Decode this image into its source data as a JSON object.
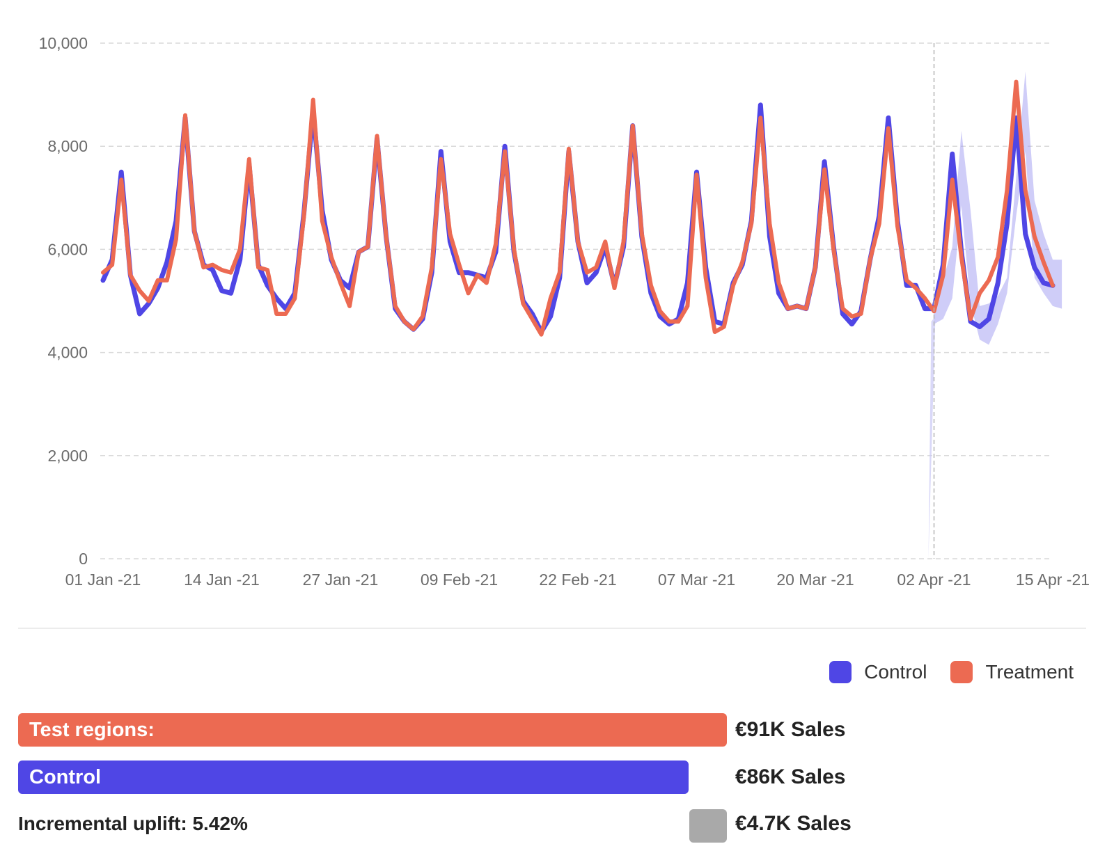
{
  "chart_data": {
    "type": "line",
    "x_start": "2021-01-01",
    "x_ticks": [
      "01 Jan -21",
      "14 Jan -21",
      "27 Jan -21",
      "09 Feb -21",
      "22 Feb -21",
      "07 Mar -21",
      "20 Mar -21",
      "02 Apr -21",
      "15 Apr -21"
    ],
    "y_ticks": [
      "0",
      "2,000",
      "4,000",
      "6,000",
      "8,000",
      "10,000"
    ],
    "ylim": [
      0,
      10000
    ],
    "grid": "horizontal dashed",
    "intervention_date": "02 Apr -21",
    "series": [
      {
        "name": "Control",
        "color": "#4f46e5",
        "values": [
          5400,
          5800,
          7500,
          5500,
          4750,
          4950,
          5250,
          5750,
          6550,
          8550,
          6350,
          5700,
          5600,
          5200,
          5150,
          5800,
          7650,
          5700,
          5300,
          5050,
          4850,
          5150,
          6700,
          8700,
          6750,
          5800,
          5400,
          5250,
          5950,
          6050,
          8150,
          6250,
          4850,
          4600,
          4450,
          4650,
          5550,
          7900,
          6150,
          5550,
          5550,
          5500,
          5450,
          5950,
          8000,
          5950,
          5000,
          4750,
          4400,
          4700,
          5450,
          7900,
          6150,
          5350,
          5550,
          6050,
          5300,
          6050,
          8400,
          6250,
          5150,
          4700,
          4550,
          4650,
          5350,
          7500,
          5650,
          4600,
          4550,
          5350,
          5700,
          6550,
          8800,
          6250,
          5150,
          4850,
          4900,
          4850,
          5650,
          7700,
          6050,
          4750,
          4550,
          4800,
          5800,
          6650,
          8550,
          6550,
          5300,
          5300,
          4850,
          4850,
          5700,
          7850,
          5950,
          4600,
          4500,
          4650,
          5350,
          6500,
          8550,
          6300,
          5650,
          5350,
          5300
        ],
        "band": {
          "start_index": 91,
          "lower": [
            4550,
            4650,
            5050,
            6850,
            4950,
            4250,
            4150,
            4550,
            5150,
            6650,
            7900,
            5450,
            5150,
            4900,
            4850
          ],
          "upper": [
            4850,
            5400,
            6050,
            8300,
            6750,
            4900,
            4950,
            5100,
            5450,
            7400,
            9450,
            6950,
            6300,
            5800,
            5800
          ]
        }
      },
      {
        "name": "Treatment",
        "color": "#ec6a52",
        "values": [
          5550,
          5700,
          7350,
          5500,
          5200,
          5000,
          5400,
          5400,
          6200,
          8600,
          6350,
          5650,
          5700,
          5600,
          5550,
          6000,
          7750,
          5650,
          5600,
          4750,
          4750,
          5050,
          6650,
          8900,
          6550,
          5850,
          5350,
          4900,
          5950,
          6050,
          8200,
          6250,
          4900,
          4600,
          4450,
          4700,
          5650,
          7750,
          6300,
          5700,
          5150,
          5500,
          5350,
          6100,
          7900,
          6000,
          4950,
          4650,
          4350,
          5050,
          5550,
          7950,
          6150,
          5550,
          5650,
          6150,
          5250,
          6150,
          8400,
          6300,
          5300,
          4800,
          4600,
          4600,
          4900,
          7450,
          5450,
          4400,
          4500,
          5300,
          5750,
          6500,
          8550,
          6500,
          5350,
          4850,
          4900,
          4850,
          5650,
          7550,
          6000,
          4850,
          4700,
          4750,
          5800,
          6500,
          8350,
          6450,
          5400,
          5250,
          5050,
          4800,
          5500,
          7350,
          5850,
          4650,
          5150,
          5400,
          5850,
          7150,
          9250,
          7150,
          6250,
          5750,
          5300
        ]
      }
    ]
  },
  "legend": {
    "control_label": "Control",
    "treatment_label": "Treatment",
    "control_color": "#4f46e5",
    "treatment_color": "#ec6a52"
  },
  "summary": {
    "test_label": "Test regions:",
    "test_value": "€91K Sales",
    "control_label": "Control",
    "control_value": "€86K Sales",
    "uplift_label": "Incremental uplift: 5.42%",
    "uplift_value": "€4.7K Sales"
  }
}
